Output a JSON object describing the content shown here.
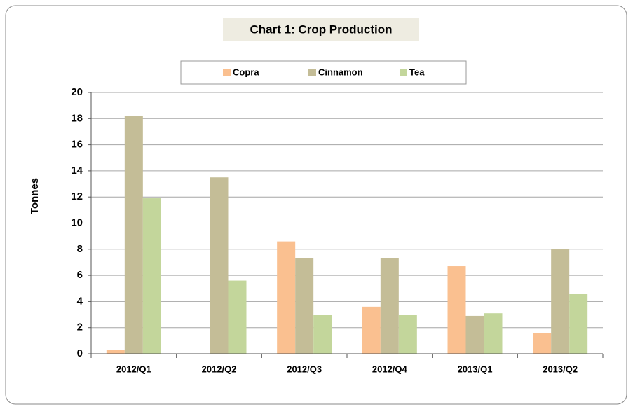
{
  "chart_data": {
    "type": "bar",
    "title": "Chart 1:  Crop Production",
    "y_label": "Tonnes",
    "categories": [
      "2012/Q1",
      "2012/Q2",
      "2012/Q3",
      "2012/Q4",
      "2013/Q1",
      "2013/Q2"
    ],
    "series": [
      {
        "name": "Copra",
        "color": "#fac090",
        "values": [
          0.3,
          0,
          8.6,
          3.6,
          6.7,
          1.6
        ]
      },
      {
        "name": "Cinnamon",
        "color": "#c4bd97",
        "values": [
          18.2,
          13.5,
          7.3,
          7.3,
          2.9,
          8.0
        ]
      },
      {
        "name": "Tea",
        "color": "#c3d69b",
        "values": [
          11.9,
          5.6,
          3.0,
          3.0,
          3.1,
          4.6
        ]
      }
    ],
    "ylim": [
      0,
      20
    ],
    "yticks": [
      0,
      2,
      4,
      6,
      8,
      10,
      12,
      14,
      16,
      18,
      20
    ],
    "grid": true,
    "legend": "top"
  }
}
